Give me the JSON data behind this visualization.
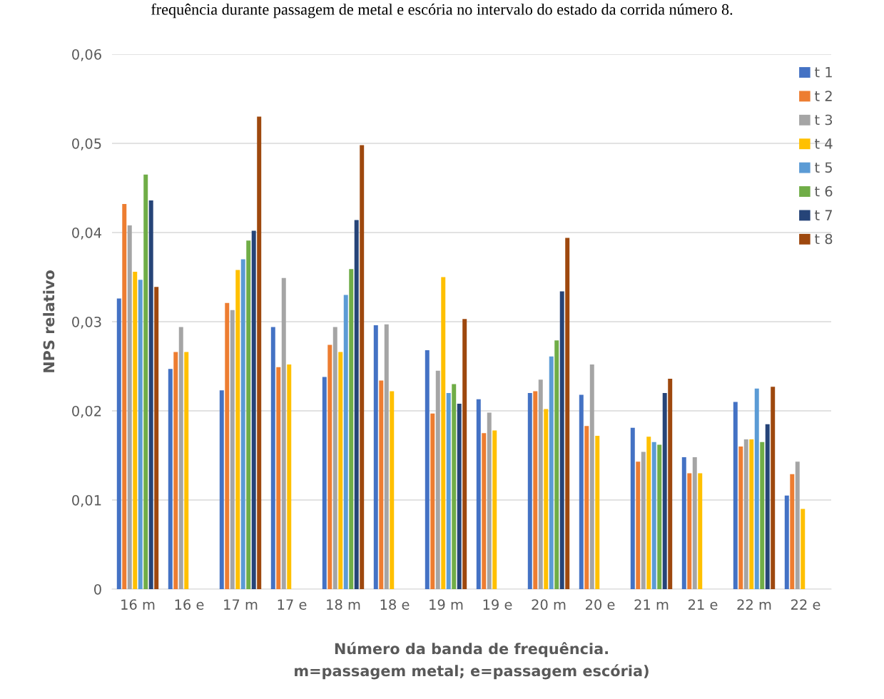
{
  "chart_data": {
    "type": "bar",
    "title": "frequência durante passagem de metal e escória no intervalo do estado da corrida número 8.",
    "xlabel": "Número da banda de frequência.\nm=passagem metal; e=passagem escória)",
    "ylabel": "NPS relativo",
    "categories": [
      "16 m",
      "16 e",
      "17 m",
      "17 e",
      "18 m",
      "18 e",
      "19 m",
      "19 e",
      "20 m",
      "20 e",
      "21 m",
      "21 e",
      "22 m",
      "22 e"
    ],
    "series": [
      {
        "name": "t 1",
        "color": "#4472c4",
        "values": [
          0.0326,
          0.0247,
          0.0223,
          0.0294,
          0.0238,
          0.0296,
          0.0268,
          0.0213,
          0.022,
          0.0218,
          0.0181,
          0.0148,
          0.021,
          0.0105
        ]
      },
      {
        "name": "t 2",
        "color": "#ed7d31",
        "values": [
          0.0432,
          0.0266,
          0.0321,
          0.0249,
          0.0274,
          0.0234,
          0.0197,
          0.0175,
          0.0222,
          0.0183,
          0.0143,
          0.013,
          0.016,
          0.0129
        ]
      },
      {
        "name": "t 3",
        "color": "#a5a5a5",
        "values": [
          0.0408,
          0.0294,
          0.0313,
          0.0349,
          0.0294,
          0.0297,
          0.0245,
          0.0198,
          0.0235,
          0.0252,
          0.0154,
          0.0148,
          0.0168,
          0.0143
        ]
      },
      {
        "name": "t 4",
        "color": "#ffc000",
        "values": [
          0.0356,
          0.0266,
          0.0358,
          0.0252,
          0.0266,
          0.0222,
          0.035,
          0.0178,
          0.0202,
          0.0172,
          0.0171,
          0.013,
          0.0168,
          0.009
        ]
      },
      {
        "name": "t 5",
        "color": "#5b9bd5",
        "values": [
          0.0347,
          null,
          0.037,
          null,
          0.033,
          null,
          0.022,
          null,
          0.0261,
          null,
          0.0165,
          null,
          0.0225,
          null
        ]
      },
      {
        "name": "t 6",
        "color": "#70ad47",
        "values": [
          0.0465,
          null,
          0.0391,
          null,
          0.0359,
          null,
          0.023,
          null,
          0.0279,
          null,
          0.0162,
          null,
          0.0165,
          null
        ]
      },
      {
        "name": "t 7",
        "color": "#264478",
        "values": [
          0.0436,
          null,
          0.0402,
          null,
          0.0414,
          null,
          0.0208,
          null,
          0.0334,
          null,
          0.022,
          null,
          0.0185,
          null
        ]
      },
      {
        "name": "t 8",
        "color": "#9e480e",
        "values": [
          0.0339,
          null,
          0.053,
          null,
          0.0498,
          null,
          0.0303,
          null,
          0.0394,
          null,
          0.0236,
          null,
          0.0227,
          null
        ]
      }
    ],
    "ylim": [
      0,
      0.06
    ],
    "yticks": [
      {
        "value": 0,
        "label": "0"
      },
      {
        "value": 0.01,
        "label": "0,01"
      },
      {
        "value": 0.02,
        "label": "0,02"
      },
      {
        "value": 0.03,
        "label": "0,03"
      },
      {
        "value": 0.04,
        "label": "0,04"
      },
      {
        "value": 0.05,
        "label": "0,05"
      },
      {
        "value": 0.06,
        "label": "0,06"
      }
    ],
    "grid": "y",
    "legend": "top right"
  }
}
